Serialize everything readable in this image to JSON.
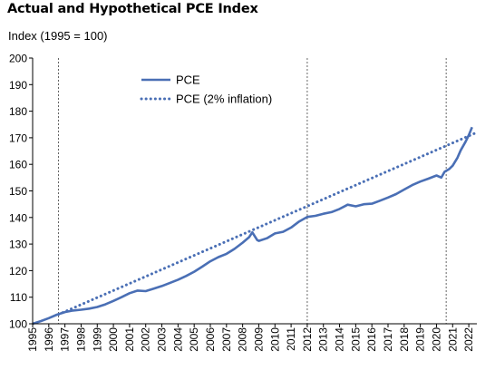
{
  "chart_data": {
    "type": "line",
    "title": "Actual and Hypothetical PCE Index",
    "ylabel": "Index (1995 = 100)",
    "xlabel": "",
    "ylim": [
      100,
      200
    ],
    "xlim": [
      1995,
      2022.5
    ],
    "yticks": [
      100,
      110,
      120,
      130,
      140,
      150,
      160,
      170,
      180,
      190,
      200
    ],
    "x_tick_labels": [
      "1995",
      "1996",
      "1997",
      "1998",
      "1999",
      "2000",
      "2001",
      "2002",
      "2003",
      "2004",
      "2005",
      "2006",
      "2007",
      "2008",
      "2009",
      "2010",
      "2011",
      "2012",
      "2013",
      "2014",
      "2015",
      "2016",
      "2017",
      "2018",
      "2019",
      "2020",
      "2021",
      "2022"
    ],
    "vlines": [
      1996.6,
      2012.0,
      2020.6
    ],
    "grid": false,
    "legend_position": "top-center",
    "colors": {
      "series": "#4a6fb5",
      "axis": "#000000",
      "vline": "#555555"
    },
    "series": [
      {
        "name": "PCE",
        "style": "solid",
        "x": [
          1995.0,
          1995.5,
          1996.0,
          1996.5,
          1997.0,
          1997.5,
          1998.0,
          1998.5,
          1999.0,
          1999.5,
          2000.0,
          2000.5,
          2001.0,
          2001.5,
          2002.0,
          2002.5,
          2003.0,
          2003.5,
          2004.0,
          2004.5,
          2005.0,
          2005.5,
          2006.0,
          2006.5,
          2007.0,
          2007.5,
          2008.0,
          2008.4,
          2008.6,
          2008.9,
          2009.0,
          2009.5,
          2010.0,
          2010.5,
          2011.0,
          2011.5,
          2012.0,
          2012.5,
          2013.0,
          2013.5,
          2014.0,
          2014.5,
          2015.0,
          2015.5,
          2016.0,
          2016.5,
          2017.0,
          2017.5,
          2018.0,
          2018.5,
          2019.0,
          2019.5,
          2020.0,
          2020.3,
          2020.5,
          2020.8,
          2021.0,
          2021.3,
          2021.5,
          2021.8,
          2022.0,
          2022.2
        ],
        "y": [
          100.0,
          101.0,
          102.1,
          103.4,
          104.4,
          105.0,
          105.3,
          105.7,
          106.3,
          107.3,
          108.6,
          110.0,
          111.5,
          112.5,
          112.3,
          113.2,
          114.2,
          115.4,
          116.6,
          118.0,
          119.6,
          121.5,
          123.5,
          125.1,
          126.3,
          128.2,
          130.5,
          132.6,
          134.4,
          131.5,
          131.2,
          132.2,
          134.0,
          134.6,
          136.2,
          138.5,
          140.2,
          140.6,
          141.4,
          142.0,
          143.2,
          144.8,
          144.2,
          145.0,
          145.2,
          146.3,
          147.5,
          148.8,
          150.5,
          152.2,
          153.5,
          154.6,
          155.8,
          155.0,
          157.2,
          158.3,
          159.5,
          162.5,
          165.3,
          168.5,
          171.0,
          174.0
        ]
      },
      {
        "name": "PCE (2% inflation)",
        "style": "dotted",
        "x": [
          1996.6,
          2022.5
        ],
        "y": [
          103.5,
          172.0
        ]
      }
    ]
  }
}
